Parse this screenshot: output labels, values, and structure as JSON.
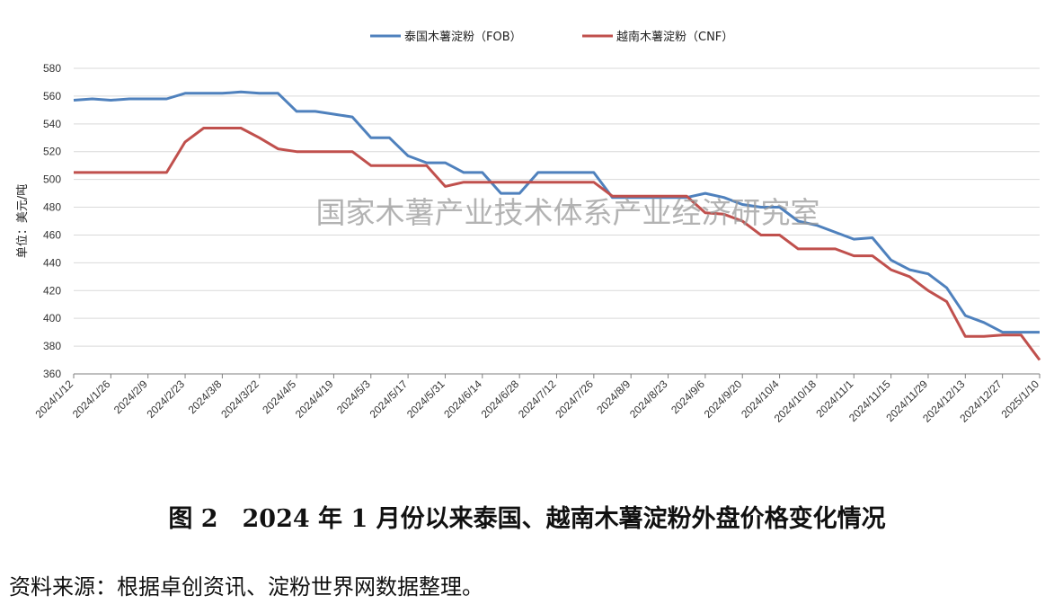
{
  "watermark": "国家木薯产业技术体系产业经济研究室",
  "caption": "图 2　2024 年 1 月份以来泰国、越南木薯淀粉外盘价格变化情况",
  "source_note": "资料来源：根据卓创资讯、淀粉世界网数据整理。",
  "colors": {
    "thailand": "#4f81bd",
    "vietnam": "#c0504d",
    "grid": "#d9d9d9",
    "axis": "#7f7f7f"
  },
  "chart_data": {
    "type": "line",
    "ylabel": "单位：美元/吨",
    "ylim": [
      360,
      580
    ],
    "yticks": [
      360,
      380,
      400,
      420,
      440,
      460,
      480,
      500,
      520,
      540,
      560,
      580
    ],
    "grid": true,
    "legend_position": "top",
    "tick_labels": [
      "2024/1/12",
      "2024/1/26",
      "2024/2/9",
      "2024/2/23",
      "2024/3/8",
      "2024/3/22",
      "2024/4/5",
      "2024/4/19",
      "2024/5/3",
      "2024/5/17",
      "2024/5/31",
      "2024/6/14",
      "2024/6/28",
      "2024/7/12",
      "2024/7/26",
      "2024/8/9",
      "2024/8/23",
      "2024/9/6",
      "2024/9/20",
      "2024/10/4",
      "2024/10/18",
      "2024/11/1",
      "2024/11/15",
      "2024/11/29",
      "2024/12/13",
      "2024/12/27",
      "2025/1/10"
    ],
    "series": [
      {
        "name": "泰国木薯淀粉（FOB）",
        "color": "#4f81bd",
        "values": [
          557,
          558,
          557,
          558,
          558,
          558,
          562,
          562,
          562,
          563,
          562,
          562,
          549,
          549,
          547,
          545,
          530,
          530,
          517,
          512,
          512,
          505,
          505,
          490,
          490,
          505,
          505,
          505,
          505,
          487,
          487,
          487,
          487,
          487,
          490,
          487,
          482,
          480,
          480,
          470,
          467,
          462,
          457,
          458,
          442,
          435,
          432,
          422,
          402,
          397,
          390,
          390,
          390
        ]
      },
      {
        "name": "越南木薯淀粉（CNF）",
        "color": "#c0504d",
        "values": [
          505,
          505,
          505,
          505,
          505,
          505,
          527,
          537,
          537,
          537,
          530,
          522,
          520,
          520,
          520,
          520,
          510,
          510,
          510,
          510,
          495,
          498,
          498,
          498,
          498,
          498,
          498,
          498,
          498,
          488,
          488,
          488,
          488,
          488,
          476,
          475,
          470,
          460,
          460,
          450,
          450,
          450,
          445,
          445,
          435,
          430,
          420,
          412,
          387,
          387,
          388,
          388,
          370
        ]
      }
    ]
  }
}
